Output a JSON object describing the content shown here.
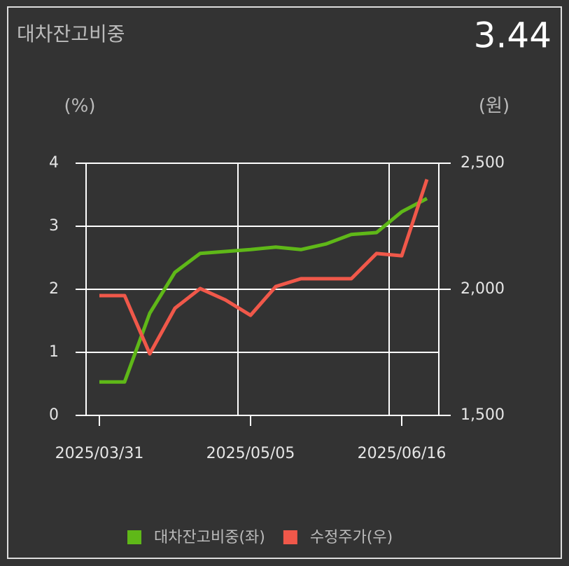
{
  "chart_data": {
    "type": "line",
    "title": "대차잔고비중",
    "current_value": "3.44",
    "ylabel": "(%)",
    "y2label": "(원)",
    "categories": [
      "2025/03/31",
      null,
      null,
      null,
      null,
      null,
      "2025/05/05",
      null,
      null,
      null,
      null,
      null,
      "2025/06/16",
      null
    ],
    "series": [
      {
        "name": "대차잔고비중(좌)",
        "color": "#5fb818",
        "values": [
          0.53,
          0.53,
          1.62,
          2.27,
          2.57,
          2.6,
          2.63,
          2.67,
          2.63,
          2.72,
          2.87,
          2.9,
          3.23,
          3.44
        ]
      },
      {
        "name": "수정주가(우)",
        "color": "#f0584a",
        "axis": "y2",
        "values": [
          1975,
          1975,
          1744,
          1925,
          2003,
          1958,
          1897,
          2011,
          2042,
          2042,
          2042,
          2142,
          2133,
          2436
        ]
      }
    ],
    "ylim": [
      0,
      4
    ],
    "yticks": [
      0,
      1,
      2,
      3,
      4
    ],
    "y2lim": [
      1500,
      2500
    ],
    "y2ticks": [
      {
        "value": 1500,
        "label": "1,500"
      },
      {
        "value": 2000,
        "label": "2,000"
      },
      {
        "value": 2500,
        "label": "2,500"
      }
    ],
    "grid": true
  }
}
